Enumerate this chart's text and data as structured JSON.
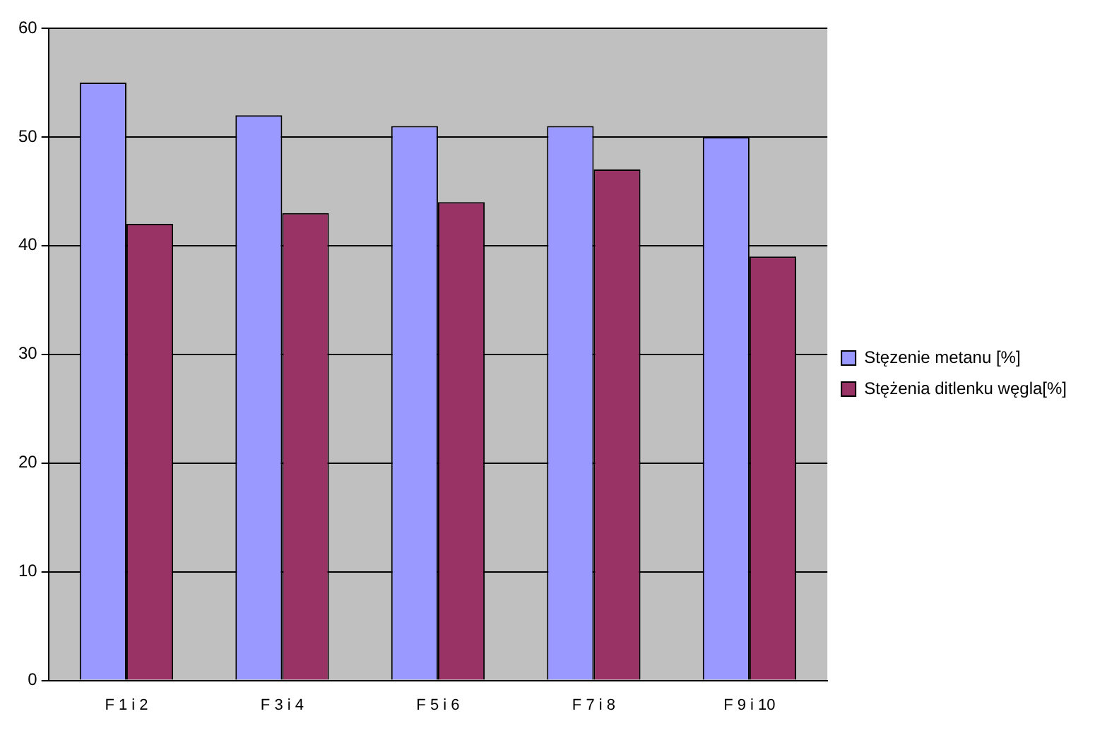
{
  "chart_data": {
    "type": "bar",
    "categories": [
      "F 1 i 2",
      "F 3 i 4",
      "F 5 i 6",
      "F 7 i 8",
      "F 9 i 10"
    ],
    "series": [
      {
        "name": "Stęzenie metanu [%]",
        "color": "#9999ff",
        "values": [
          55,
          52,
          51,
          51,
          50
        ]
      },
      {
        "name": "Stężenia ditlenku węgla[%]",
        "color": "#993366",
        "values": [
          42,
          43,
          44,
          47,
          39
        ]
      }
    ],
    "ylim": [
      0,
      60
    ],
    "yticks": [
      0,
      10,
      20,
      30,
      40,
      50,
      60
    ],
    "grid": "y",
    "legend": "right"
  }
}
